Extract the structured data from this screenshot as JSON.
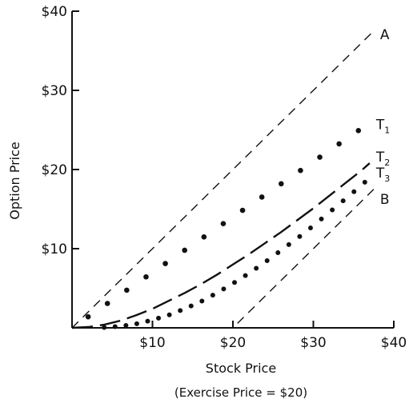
{
  "chart_data": {
    "type": "line",
    "xlabel": "Stock Price",
    "ylabel": "Option Price",
    "subtitle": "(Exercise Price = $20)",
    "xlim": [
      0,
      40
    ],
    "ylim": [
      0,
      40
    ],
    "x_ticks": [
      {
        "value": 10,
        "label": "$10"
      },
      {
        "value": 20,
        "label": "$20"
      },
      {
        "value": 30,
        "label": "$30"
      },
      {
        "value": 40,
        "label": "$40"
      }
    ],
    "y_ticks": [
      {
        "value": 10,
        "label": "$10"
      },
      {
        "value": 20,
        "label": "$20"
      },
      {
        "value": 30,
        "label": "$30"
      },
      {
        "value": 40,
        "label": "$40"
      }
    ],
    "grid": false,
    "exercise_price": 20,
    "series": [
      {
        "name": "A",
        "style": "dashed-short",
        "x": [
          0,
          37.5
        ],
        "y": [
          0,
          37.5
        ]
      },
      {
        "name": "T1",
        "style": "dotted-sparse",
        "x": [
          0,
          2,
          4,
          6,
          8,
          10,
          12,
          14,
          16,
          18,
          20,
          22,
          24,
          26,
          28,
          30,
          32,
          34,
          36,
          37
        ],
        "y": [
          0,
          1.4,
          2.8,
          4.2,
          5.6,
          7.0,
          8.4,
          9.8,
          11.2,
          12.6,
          14.0,
          15.4,
          16.8,
          18.2,
          19.6,
          21.0,
          22.4,
          23.8,
          25.2,
          25.9
        ]
      },
      {
        "name": "T2",
        "style": "dashed-long",
        "x": [
          0,
          2,
          4,
          6,
          8,
          10,
          12,
          14,
          16,
          18,
          20,
          22,
          24,
          26,
          28,
          30,
          32,
          34,
          36,
          37
        ],
        "y": [
          0,
          0.1,
          0.4,
          0.9,
          1.6,
          2.4,
          3.4,
          4.4,
          5.5,
          6.7,
          8.0,
          9.3,
          10.7,
          12.1,
          13.6,
          15.1,
          16.7,
          18.3,
          19.9,
          20.8
        ]
      },
      {
        "name": "T3",
        "style": "dotted-dense",
        "x": [
          0,
          4,
          6,
          8,
          10,
          12,
          14,
          16,
          18,
          20,
          22,
          24,
          26,
          28,
          30,
          32,
          34,
          36,
          37
        ],
        "y": [
          0,
          0.05,
          0.2,
          0.5,
          1.0,
          1.6,
          2.4,
          3.3,
          4.4,
          5.6,
          6.9,
          8.3,
          9.8,
          11.3,
          12.9,
          14.6,
          16.3,
          18.0,
          19.0
        ]
      },
      {
        "name": "B",
        "style": "dashed-short",
        "x": [
          0,
          20,
          37.5
        ],
        "y": [
          0,
          0,
          17.5
        ]
      }
    ]
  }
}
